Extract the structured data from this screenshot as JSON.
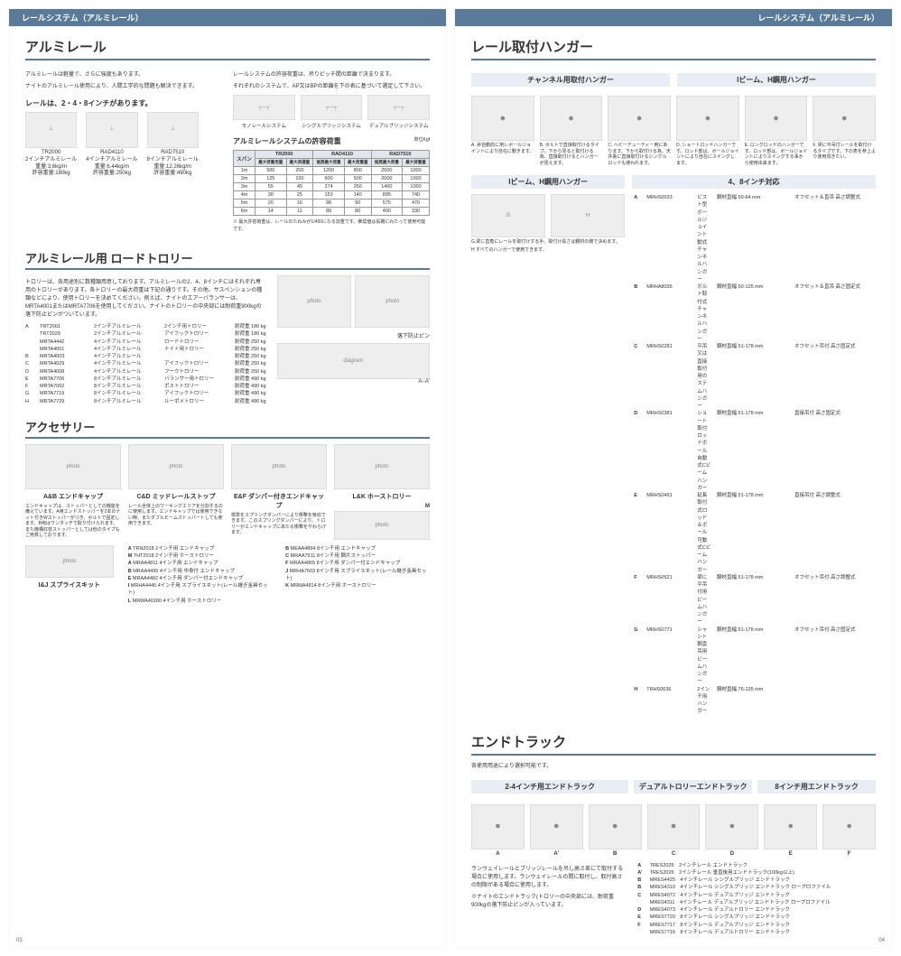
{
  "left": {
    "header": "レールシステム（アルミレール）",
    "title": "アルミレール",
    "intro1": "アルミレールは軽量で、さらに強度もあります。",
    "intro2": "ナイトのアルミレール使用により、人間工学的な問題も解決できます。",
    "sec1": "レールは、2・4・8インチがあります。",
    "rails": [
      {
        "code": "TR2000",
        "name": "2インチアルミレール",
        "w": "重量:3.6kg/m",
        "cap": "許容重量:180kg"
      },
      {
        "code": "RAD4110",
        "name": "4インチアルミレール",
        "w": "重量:6.44kg/m",
        "cap": "許容重量:250kg"
      },
      {
        "code": "RAD7510",
        "name": "8インチアルミレール",
        "w": "重量:12.26kg/m",
        "cap": "許容重量:490kg"
      }
    ],
    "rhsNote1": "レールシステムの許容荷重は、吊りピッチ間の距離で決まります。",
    "rhsNote2": "それぞれのシステムで、AP又はBPの距離を下の表に基づいて選定して下さい。",
    "sys": [
      {
        "l": "モノレールシステム"
      },
      {
        "l": "シングルブリッジシステム"
      },
      {
        "l": "デュアルブリッジシステム"
      }
    ],
    "loadTitle": "アルミレールシステムの許容荷重",
    "loadUnit": "単位Kgf",
    "loadHead": [
      "スパン",
      "TR2000",
      "",
      "RAD4110",
      "",
      "RAD7510",
      ""
    ],
    "loadSub": [
      "L",
      "最大荷重用量",
      "最大荷揚量",
      "推奨最大荷重",
      "最大荷重量",
      "推奨最大荷重",
      "最大荷重量"
    ],
    "loadRows": [
      [
        "1m",
        "500",
        "200",
        "1200",
        "800",
        "2500",
        "1000"
      ],
      [
        "2m",
        "125",
        "100",
        "600",
        "500",
        "2000",
        "1000"
      ],
      [
        "3m",
        "55",
        "45",
        "274",
        "250",
        "1400",
        "1000"
      ],
      [
        "4m",
        "30",
        "25",
        "153",
        "140",
        "895",
        "740"
      ],
      [
        "5m",
        "20",
        "16",
        "98",
        "90",
        "575",
        "470"
      ],
      [
        "6m",
        "14",
        "11",
        "89",
        "80",
        "400",
        "330"
      ]
    ],
    "loadFoot": "※ 最大許容荷重は、レールのたわみが1/450になる加重です。推奨値は長期にわたって使用可能です。",
    "title2": "アルミレール用 ロードトロリー",
    "trolleyNote": "トロリーは、各用途別に数種類用意しております。アルミレールの2、4、8インチにはそれぞれ専用のトロリーがあります。各トロリーの最大荷重は下記の通りです。その他、サスペンションの種類などにより、使用トロリーを決めてください。例えば、ナイトのエアーバランサーは、MRTA4001またはMRTA7706を使用してください。ナイトのトロリーの中央部には耐荷重900kgの落下防止ピンがついています。",
    "trolleys": [
      [
        "A",
        "TRT2001",
        "2インチアルミレール",
        "2インチ用トロリー",
        "耐荷重 180 kg"
      ],
      [
        "",
        "TRT2029",
        "2インチアルミレール",
        "アイフックトロリー",
        "耐荷重 180 kg"
      ],
      [
        "",
        "MRTA4442",
        "4インチアルミレール",
        "ロードトロリー",
        "耐荷重 250 kg"
      ],
      [
        "",
        "MRTA4001",
        "4インチアルミレール",
        "ナイト用トロリー",
        "耐荷重 250 kg"
      ],
      [
        "B",
        "MRTA4003",
        "4インチアルミレール",
        "",
        "耐荷重 250 kg"
      ],
      [
        "C",
        "MRTA4029",
        "4インチアルミレール",
        "アイフックトロリー",
        "耐荷重 250 kg"
      ],
      [
        "D",
        "MRTA4008",
        "4インチアルミレール",
        "フークトロリー",
        "耐荷重 250 kg"
      ],
      [
        "E",
        "MRTA7706",
        "8インチアルミレール",
        "バランサー用トロリー",
        "耐荷重 490 kg"
      ],
      [
        "F",
        "MRTA7002",
        "8インチアルミレール",
        "ポストトロリー",
        "耐荷重 490 kg"
      ],
      [
        "G",
        "MRTA7719",
        "8インチアルミレール",
        "アイフックトロリー",
        "耐荷重 490 kg"
      ],
      [
        "H",
        "MRTA7729",
        "8インチアルミレール",
        "ルーポメトロリー",
        "耐荷重 490 kg"
      ]
    ],
    "pinLabel": "落下防止ピン",
    "aaLabel": "A−A'",
    "title3": "アクセサリー",
    "acc": [
      {
        "t": "A&B エンドキャップ",
        "n": "エンドキャップは、ストッパーとしての機能を備えています。A用エンドストッパーを2本のナット付きWストッパーがつき、ボルトで固定します。B用はワンタッチで取り付けられます。また機構収容ストッパーとしては他のタイプもご用意しております。"
      },
      {
        "t": "C&D ミッドレールストップ",
        "n": "レール全体上のワーキングエリアを分割するのに使用します。エンドキャップでは使用できない時、またダブルビームストッパートしても使用できます。"
      },
      {
        "t": "E&F ダンパー付きエンドキャップ",
        "n": "標準をスプリングダンパーにより衝撃を吸収できます。このスプリングダンパーにより、トロリーがエンドキャップにあたる衝撃をやわらげます。"
      },
      {
        "t": "L&K ホーストロリー",
        "n": ""
      }
    ],
    "accM": "M",
    "accList1": [
      [
        "A",
        "TRN2018",
        "2インチ用 エンドキャップ"
      ],
      [
        "M",
        "THT2018",
        "2インチ用 ホーストロリー"
      ],
      [
        "A",
        "MRAA4811",
        "4インチ用 エンドキャップ"
      ],
      [
        "B",
        "MRAA4495",
        "4インチ用 中身付 エンドキャップ"
      ],
      [
        "E",
        "MRAA4482",
        "4インチ用 ダンパー付エンドキャップ"
      ],
      [
        "I",
        "MRHA4445",
        "4インチ用 スプライスキット(レール継ぎ金具セット)"
      ],
      [
        "L",
        "MRWA40180",
        "4インチ用 ホーストロリー"
      ]
    ],
    "accList2": [
      [
        "B",
        "MEAA4894",
        "8インチ用 エンドキャップ"
      ],
      [
        "C",
        "MRAA7511",
        "8インチ用 鋼片ストッパー"
      ],
      [
        "F",
        "MRAA4865",
        "8インチ用 ダンパー付エンドキャップ"
      ],
      [
        "J",
        "MRHA7503",
        "8インチ用 スプライスキット(レール継ぎ金具セット)"
      ],
      [
        "K",
        "MRMA4814",
        "8インチ用 ホーストロリー"
      ]
    ],
    "splice": "I&J スプライスキット",
    "pnum": "03"
  },
  "right": {
    "header": "レールシステム（アルミレール）",
    "title": "レール取付ハンガー",
    "sub1": "チャンネル用取付ハンガー",
    "sub2": "Iビーム、H鋼用ハンガー",
    "hangCaps": [
      "A. 昇自動的に用レボールジョイントにより自在に動きます。",
      "B. ボルトで直接取付けるタイプ。下から見ると取付ける為、直接取付けるとハンガーが見えます。",
      "C. ヘビーデューティー用にあります。下から取付ける為、天井裏に直接取付けるシングルロッドも使われます。",
      "D. ショートロッドハンガーです。ロッド部は、ボールジョイントにより自在にスイングします。",
      "E. ロングロッドのハンガーです。ロッド部は、ボールジョイントによりスイングする事から使用出来ます。",
      "F. 梁に平吊付レールを取付けるタイプです。下の表を参上より使用頂きたい。"
    ],
    "sub3": "Iビーム、H鋼用ハンガー",
    "sub4": "4、8インチ対応",
    "hangSpec": [
      [
        "A",
        "MRHS0033",
        "ビスト型ボールジョイント動式チャンネルハンガー",
        "鋼材直幅 50-64 mm",
        "オフセット＆直吊 高さ調整式"
      ],
      [
        "B",
        "MRHA8036",
        "ボルト取付式チャンネルハンガー",
        "鋼材直幅 50-125 mm",
        "オフセット＆直吊 高さ固定式"
      ],
      [
        "C",
        "MRHS0281",
        "平吊又は直接取付用のステムハンガー",
        "鋼材直幅 51-178 mm",
        "オフセット吊付 高さ固定式"
      ],
      [
        "D",
        "MRHS0381",
        "ショート取付ロッドボール自動式Cビームハンガー",
        "鋼材直幅 51-178 mm",
        "直接吊付 高さ固定式"
      ],
      [
        "E",
        "MRHS0491",
        "延長取付式ロッド＆ボール可動式Cビームハンガー",
        "鋼材直幅 51-178 mm",
        "直接吊付 高さ調整式"
      ],
      [
        "F",
        "MRHS0521",
        "梁に平吊付用ビームハンガー",
        "鋼材直幅 51-178 mm",
        "オフセット吊付 高さ調整式"
      ],
      [
        "G",
        "MRHS0771",
        "シャント鋼直吊用ビームハンガー",
        "鋼材直幅 51-178 mm",
        "オフセット吊付 高さ固定式"
      ],
      [
        "H",
        "TRHS0036",
        "2インチ用ハンガー",
        "鋼材直幅 76-125 mm",
        "",
        ""
      ]
    ],
    "hangNote": "G.梁に直角にレールを取付けする手。取付け長さは鋼材の側で決めます。",
    "hangNote2": "H すべてのハンガーで使用できます。",
    "title2": "エンドトラック",
    "etNote": "各使用用途により選択可能です。",
    "etSubs": [
      "2-4インチ用エンドトラック",
      "デュアルトロリーエンドトラック",
      "8インチ用エンドトラック"
    ],
    "etCaps": [
      "A",
      "A'",
      "B",
      "C",
      "D",
      "E",
      "F"
    ],
    "etText1": "ランウェイレールとブリッジレールを吊し高さ差にて取付する場合に使用します。ランウェイレールの間に取付し、取付高さの制限がある場合に使用します。",
    "etText2": "※ナイトのエンドトラック(トロリーの中央部には、耐荷重900kgの落下防止ピンが入っています。",
    "etList": [
      [
        "A",
        "TRES2025",
        "2インチレール エンドトラック"
      ],
      [
        "A'",
        "TRES2026",
        "2インチレール 垂直後用エンドトラック(100kg以上)"
      ],
      [
        "B",
        "MRES4425",
        "4インチレール シングルブリッジ エンドトラック"
      ],
      [
        "B",
        "MRES4310",
        "4インチレール シングルブリッジ エンドトラック ロープロファイル"
      ],
      [
        "C",
        "MRES4072",
        "4インチレール デュアルブリッジ エンドトラック"
      ],
      [
        "",
        "MRES4311",
        "4インチレール デュアルブリッジ エンドトラック ロープロファイル"
      ],
      [
        "D",
        "MRES4073",
        "4インチレール デュアルトロリー エンドトラック"
      ],
      [
        "E",
        "MRES7720",
        "8インチレール シングルブリッジ エンドトラック"
      ],
      [
        "F",
        "MRES7717",
        "8インチレール デュアルブリッジ エンドトラック"
      ],
      [
        "",
        "MRES7716",
        "8インチレール デュアルトロリー エンドトラック"
      ]
    ],
    "pnum": "04"
  }
}
